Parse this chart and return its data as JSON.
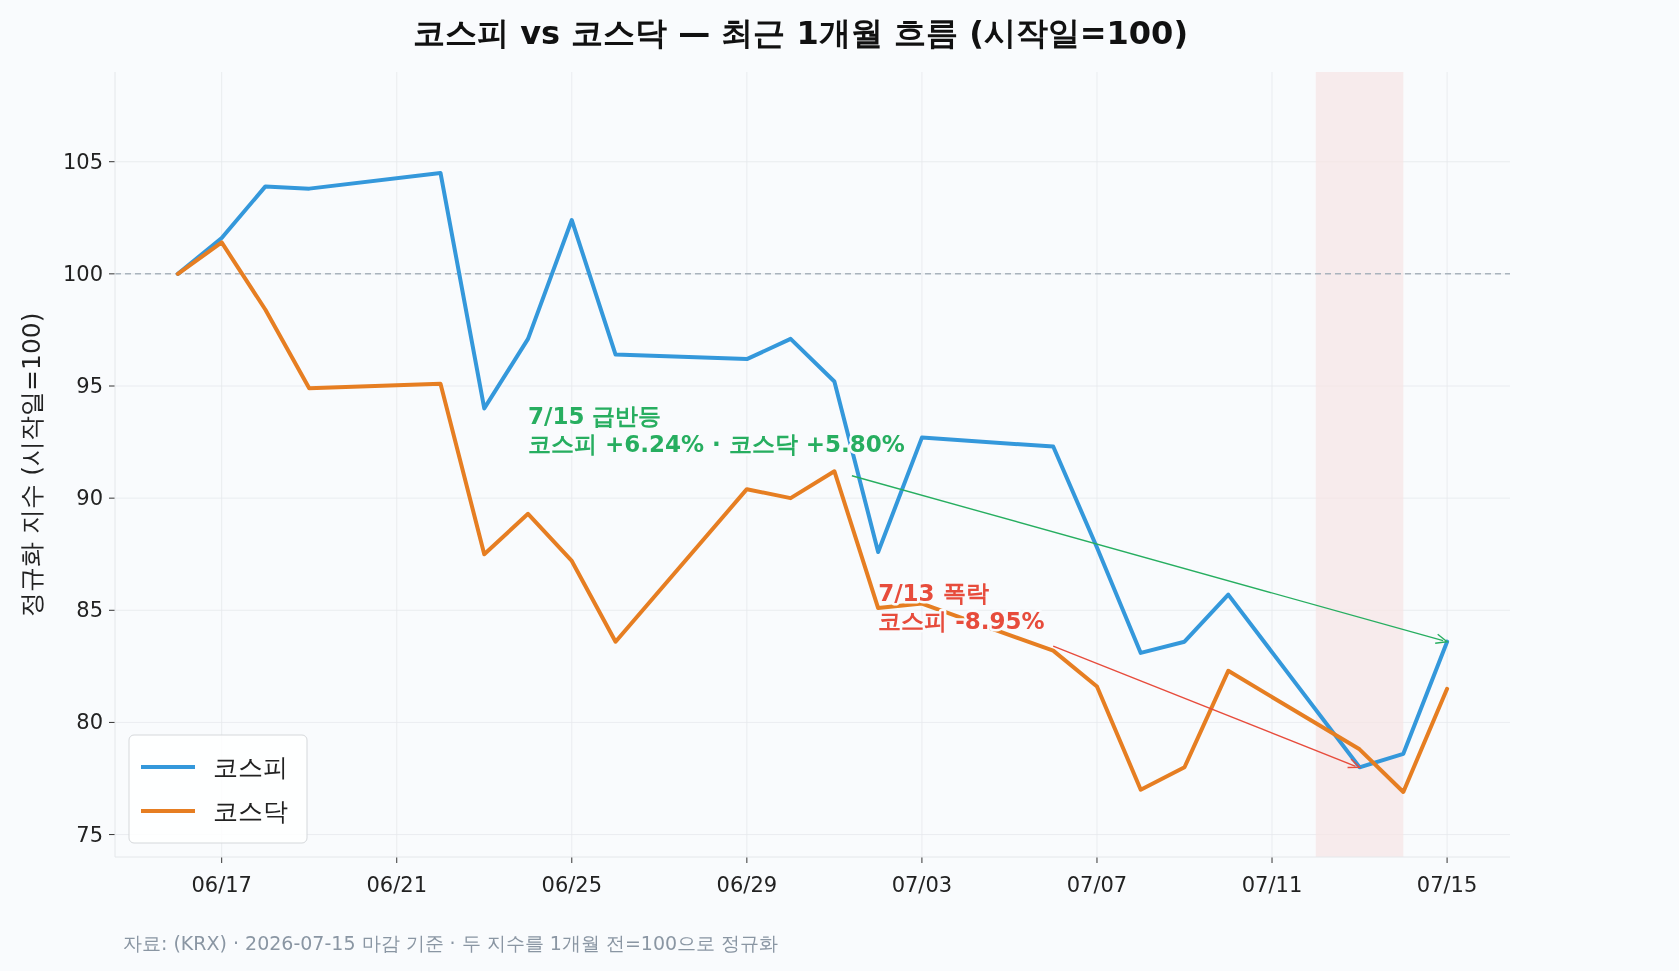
{
  "chart_data": {
    "type": "line",
    "title": "코스피 vs 코스닥 — 최근 1개월 흐름 (시작일=100)",
    "ylabel": "정규화 지수 (시작일=100)",
    "x": [
      "2026-06-16",
      "2026-06-17",
      "2026-06-18",
      "2026-06-19",
      "2026-06-22",
      "2026-06-23",
      "2026-06-24",
      "2026-06-25",
      "2026-06-26",
      "2026-06-29",
      "2026-06-30",
      "2026-07-01",
      "2026-07-02",
      "2026-07-03",
      "2026-07-06",
      "2026-07-07",
      "2026-07-08",
      "2026-07-09",
      "2026-07-10",
      "2026-07-13",
      "2026-07-14",
      "2026-07-15"
    ],
    "series": [
      {
        "name": "코스피",
        "color": "#3498db",
        "values": [
          100,
          101.6,
          103.9,
          103.8,
          104.5,
          94.0,
          97.1,
          102.4,
          96.4,
          96.2,
          97.1,
          95.2,
          87.6,
          92.7,
          92.3,
          87.8,
          83.1,
          83.6,
          85.7,
          78.0,
          78.6,
          83.6
        ]
      },
      {
        "name": "코스닥",
        "color": "#e67e22",
        "values": [
          100,
          101.4,
          98.4,
          94.9,
          95.1,
          87.5,
          89.3,
          87.2,
          83.6,
          90.4,
          90.0,
          91.2,
          85.1,
          85.3,
          83.2,
          81.6,
          77.0,
          78.0,
          82.3,
          78.8,
          76.9,
          81.5
        ]
      }
    ],
    "xlim": [
      "2026-06-14T13:30",
      "2026-07-16T10:30"
    ],
    "xticks": [
      {
        "value": "2026-06-17",
        "label": "06/17"
      },
      {
        "value": "2026-06-21",
        "label": "06/21"
      },
      {
        "value": "2026-06-25",
        "label": "06/25"
      },
      {
        "value": "2026-06-29",
        "label": "06/29"
      },
      {
        "value": "2026-07-03",
        "label": "07/03"
      },
      {
        "value": "2026-07-07",
        "label": "07/07"
      },
      {
        "value": "2026-07-11",
        "label": "07/11"
      },
      {
        "value": "2026-07-15",
        "label": "07/15"
      }
    ],
    "ylim": [
      74,
      109
    ],
    "yticks": [
      75,
      80,
      85,
      90,
      95,
      100,
      105
    ],
    "ref_lines": [
      {
        "axis": "y",
        "value": 100,
        "color": "#aab4bd",
        "line_style": "dashed"
      }
    ],
    "bands": [
      {
        "axis": "x",
        "from": "2026-07-12",
        "to": "2026-07-14",
        "color": "#f6e4e4"
      }
    ],
    "annotations": [
      {
        "text": "7/15 급반등\n코스피 +6.24% · 코스닥 +5.80%",
        "x": "2026-07-15",
        "y": 83.6
      },
      {
        "text": "7/13 폭락\n코스피 -8.95%",
        "x": "2026-07-13",
        "y": 78.0
      },
      "자료: (KRX) · 2026-07-15 마감 기준 · 두 지수를 1개월 전=100으로 정규화"
    ],
    "grid": true,
    "legend": "bottom left",
    "line_style": "solid",
    "marker": "none"
  }
}
